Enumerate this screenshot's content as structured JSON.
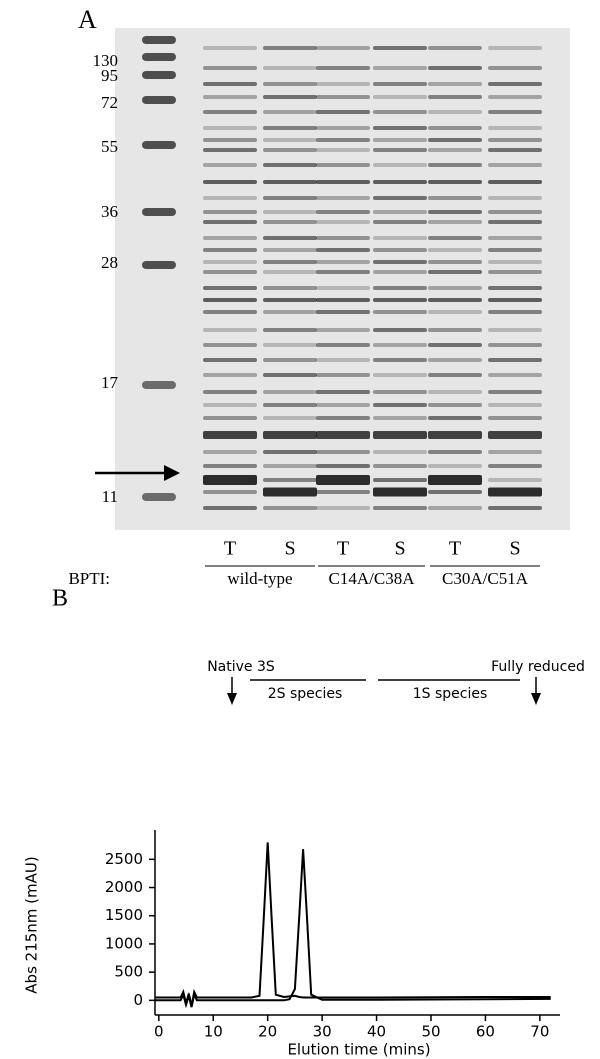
{
  "gel": {
    "panel_label": "A",
    "markers": [
      "130",
      "95",
      "72",
      "55",
      "36",
      "28",
      "17",
      "11"
    ],
    "row_label": "BPTI:",
    "lanes": [
      "T",
      "S",
      "T",
      "S",
      "T",
      "S"
    ],
    "groups": [
      "wild-type",
      "C14A/C38A",
      "C30A/C51A"
    ]
  },
  "chart_data": {
    "type": "line",
    "panel_label": "B",
    "x_label": "Elution time (mins)",
    "y_label": "Abs 215nm (mAU)",
    "annotations": [
      "Native 3S",
      "2S species",
      "1S species",
      "Fully reduced"
    ],
    "x": [
      -0.7,
      4,
      4.5,
      5,
      5.5,
      6,
      6.5,
      7,
      10,
      17,
      18.5,
      19.3,
      20,
      20.7,
      21.5,
      23,
      24,
      25,
      25.8,
      26.5,
      27.2,
      28,
      30,
      40,
      50,
      60,
      72
    ],
    "series": [
      {
        "color": "#000000",
        "values": [
          50,
          50,
          150,
          -50,
          120,
          -100,
          150,
          50,
          50,
          50,
          80,
          1500,
          2800,
          1500,
          100,
          60,
          70,
          80,
          60,
          50,
          50,
          50,
          50,
          50,
          55,
          60,
          60
        ]
      },
      {
        "color": "#000000",
        "values": [
          0,
          0,
          100,
          -80,
          80,
          -120,
          100,
          0,
          0,
          0,
          0,
          0,
          0,
          0,
          0,
          0,
          20,
          200,
          1500,
          2680,
          1500,
          100,
          10,
          10,
          15,
          20,
          25
        ]
      }
    ],
    "xlim": [
      -0.7,
      73.7
    ],
    "ylim": [
      -260,
      3020
    ],
    "xticks": [
      0,
      10,
      20,
      30,
      40,
      50,
      60,
      70
    ],
    "yticks": [
      0,
      500,
      1000,
      1500,
      2000,
      2500
    ]
  }
}
